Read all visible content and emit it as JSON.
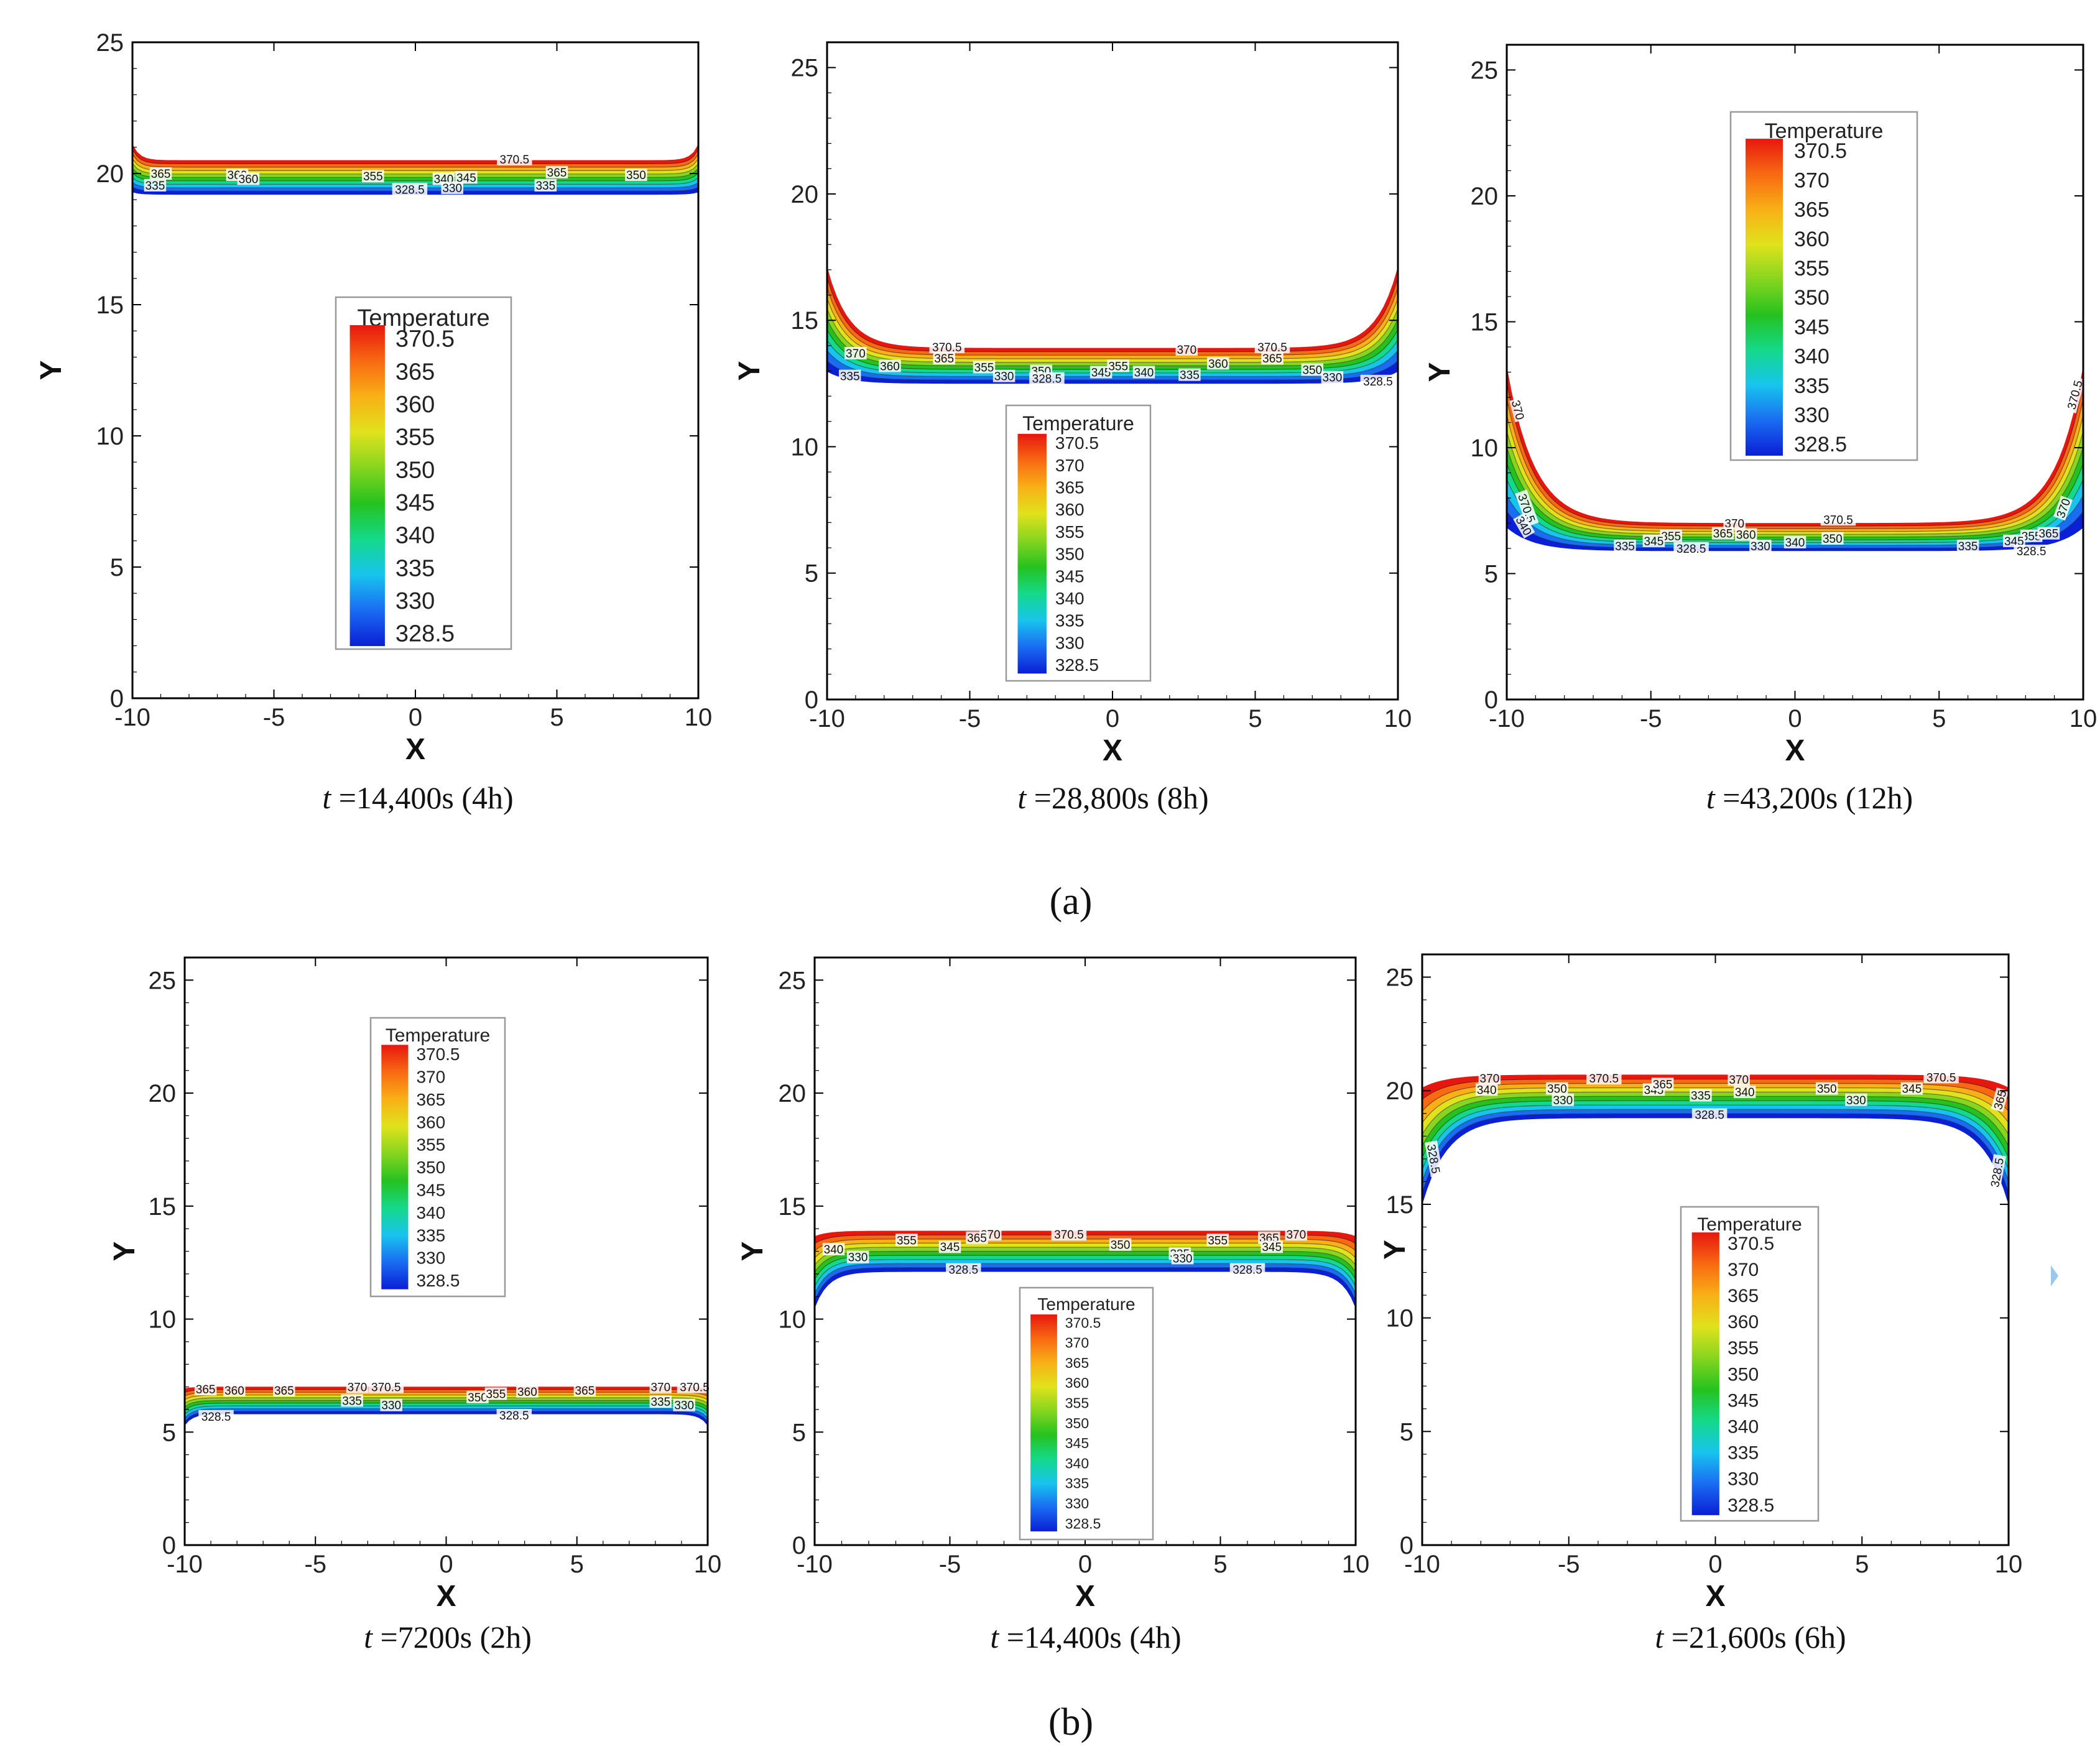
{
  "figure": {
    "label_a": "(a)",
    "label_b": "(b)"
  },
  "colors": {
    "band_colors": [
      "#0a1fd6",
      "#1a6cf2",
      "#18c4ee",
      "#14d98a",
      "#25c21f",
      "#86d51f",
      "#e0e21c",
      "#f8b016",
      "#f86912",
      "#e6170f"
    ],
    "frame": "#000000",
    "contour_line": "#222222"
  },
  "chart_data": [
    {
      "type": "contour",
      "panel": "a",
      "title": "t =14,400s (4h)",
      "caption_t": "t",
      "caption_rest": " =14,400s (4h)",
      "xlabel": "X",
      "ylabel": "Y",
      "xlim": [
        -10,
        10
      ],
      "ylim": [
        0,
        25
      ],
      "xticks": [
        "-10",
        "-5",
        "0",
        "5",
        "10"
      ],
      "yticks": [
        "0",
        "5",
        "10",
        "15",
        "20",
        "25"
      ],
      "legend": {
        "title": "Temperature",
        "levels": [
          "370.5",
          "365",
          "360",
          "355",
          "350",
          "345",
          "340",
          "335",
          "330",
          "328.5"
        ],
        "position": "center"
      },
      "front": {
        "y_hot": 20.5,
        "y_cold": 19.2,
        "edge_rise": 0.6,
        "edge_width": 0.25,
        "edge_side": "up"
      },
      "contour_labels": [
        {
          "text": "370.5",
          "x": 3.5,
          "y": 20.55
        },
        {
          "text": "365",
          "x": -9.0,
          "y": 20.0
        },
        {
          "text": "360",
          "x": -6.3,
          "y": 19.95
        },
        {
          "text": "360",
          "x": -5.9,
          "y": 19.8
        },
        {
          "text": "355",
          "x": -1.5,
          "y": 19.9
        },
        {
          "text": "345",
          "x": 1.8,
          "y": 19.85
        },
        {
          "text": "340",
          "x": 1.0,
          "y": 19.8
        },
        {
          "text": "365",
          "x": 5.0,
          "y": 20.05
        },
        {
          "text": "350",
          "x": 7.8,
          "y": 19.95
        },
        {
          "text": "335",
          "x": -9.2,
          "y": 19.55
        },
        {
          "text": "328.5",
          "x": -0.2,
          "y": 19.4
        },
        {
          "text": "330",
          "x": 1.3,
          "y": 19.45
        },
        {
          "text": "335",
          "x": 4.6,
          "y": 19.55
        }
      ]
    },
    {
      "type": "contour",
      "panel": "a",
      "title": "t =28,800s (8h)",
      "caption_t": "t",
      "caption_rest": " =28,800s (8h)",
      "xlabel": "X",
      "ylabel": "Y",
      "xlim": [
        -10,
        10
      ],
      "ylim": [
        0,
        26
      ],
      "xticks": [
        "-10",
        "-5",
        "0",
        "5",
        "10"
      ],
      "yticks": [
        "0",
        "5",
        "10",
        "15",
        "20",
        "25"
      ],
      "legend": {
        "title": "Temperature",
        "levels": [
          "370.5",
          "370",
          "365",
          "360",
          "355",
          "350",
          "345",
          "340",
          "335",
          "330",
          "328.5"
        ],
        "position": "center"
      },
      "front": {
        "y_hot": 13.9,
        "y_cold": 12.5,
        "edge_rise": 3.2,
        "edge_width": 0.75,
        "edge_side": "up"
      },
      "contour_labels": [
        {
          "text": "370.5",
          "x": -5.8,
          "y": 13.95
        },
        {
          "text": "370",
          "x": -9.0,
          "y": 13.7
        },
        {
          "text": "365",
          "x": -5.9,
          "y": 13.5
        },
        {
          "text": "360",
          "x": -7.8,
          "y": 13.2
        },
        {
          "text": "355",
          "x": -4.5,
          "y": 13.15
        },
        {
          "text": "350",
          "x": -2.5,
          "y": 13.0
        },
        {
          "text": "345",
          "x": -0.4,
          "y": 12.95
        },
        {
          "text": "355",
          "x": 0.2,
          "y": 13.2
        },
        {
          "text": "340",
          "x": 1.1,
          "y": 12.95
        },
        {
          "text": "370",
          "x": 2.6,
          "y": 13.85
        },
        {
          "text": "360",
          "x": 3.7,
          "y": 13.3
        },
        {
          "text": "370.5",
          "x": 5.6,
          "y": 13.95
        },
        {
          "text": "365",
          "x": 5.6,
          "y": 13.5
        },
        {
          "text": "350",
          "x": 7.0,
          "y": 13.05
        },
        {
          "text": "335",
          "x": -9.2,
          "y": 12.8
        },
        {
          "text": "330",
          "x": -3.8,
          "y": 12.8
        },
        {
          "text": "328.5",
          "x": -2.3,
          "y": 12.7
        },
        {
          "text": "335",
          "x": 2.7,
          "y": 12.85
        },
        {
          "text": "330",
          "x": 7.7,
          "y": 12.75
        },
        {
          "text": "328.5",
          "x": 9.3,
          "y": 12.6
        }
      ]
    },
    {
      "type": "contour",
      "panel": "a",
      "title": "t =43,200s (12h)",
      "caption_t": "t",
      "caption_rest": " =43,200s (12h)",
      "xlabel": "X",
      "ylabel": "Y",
      "xlim": [
        -10,
        10
      ],
      "ylim": [
        0,
        26
      ],
      "xticks": [
        "-10",
        "-5",
        "0",
        "5",
        "10"
      ],
      "yticks": [
        "0",
        "5",
        "10",
        "15",
        "20",
        "25"
      ],
      "legend": {
        "title": "Temperature",
        "levels": [
          "370.5",
          "370",
          "365",
          "360",
          "355",
          "350",
          "345",
          "340",
          "335",
          "330",
          "328.5"
        ],
        "position": "top-center"
      },
      "front": {
        "y_hot": 7.0,
        "y_cold": 5.9,
        "edge_rise": 6.2,
        "edge_width": 0.95,
        "edge_side": "up"
      },
      "contour_labels": [
        {
          "text": "370",
          "x": -9.6,
          "y": 11.5,
          "rotate": 75
        },
        {
          "text": "370.5",
          "x": -9.3,
          "y": 7.6,
          "rotate": 70
        },
        {
          "text": "370",
          "x": -2.1,
          "y": 7.0
        },
        {
          "text": "370.5",
          "x": 1.5,
          "y": 7.15
        },
        {
          "text": "370.5",
          "x": 9.7,
          "y": 12.1,
          "rotate": -75
        },
        {
          "text": "370",
          "x": 9.3,
          "y": 7.6,
          "rotate": -70
        },
        {
          "text": "355",
          "x": -4.3,
          "y": 6.5
        },
        {
          "text": "365",
          "x": -2.5,
          "y": 6.6
        },
        {
          "text": "360",
          "x": -1.7,
          "y": 6.55
        },
        {
          "text": "350",
          "x": 1.3,
          "y": 6.4
        },
        {
          "text": "355",
          "x": 8.2,
          "y": 6.5
        },
        {
          "text": "365",
          "x": 8.8,
          "y": 6.6
        },
        {
          "text": "345",
          "x": -4.9,
          "y": 6.3
        },
        {
          "text": "345",
          "x": 7.6,
          "y": 6.3
        },
        {
          "text": "335",
          "x": -5.9,
          "y": 6.1
        },
        {
          "text": "328.5",
          "x": -3.6,
          "y": 6.0
        },
        {
          "text": "330",
          "x": -1.2,
          "y": 6.1
        },
        {
          "text": "340",
          "x": 0.0,
          "y": 6.25
        },
        {
          "text": "335",
          "x": 6.0,
          "y": 6.1
        },
        {
          "text": "328.5",
          "x": 8.2,
          "y": 5.9
        },
        {
          "text": "340",
          "x": -9.4,
          "y": 6.9,
          "rotate": 60
        }
      ]
    },
    {
      "type": "contour",
      "panel": "b",
      "title": "t =7200s (2h)",
      "caption_t": "t",
      "caption_rest": " =7200s (2h)",
      "xlabel": "X",
      "ylabel": "Y",
      "xlim": [
        -10,
        10
      ],
      "ylim": [
        0,
        26
      ],
      "xticks": [
        "-10",
        "-5",
        "0",
        "5",
        "10"
      ],
      "yticks": [
        "0",
        "5",
        "10",
        "15",
        "20",
        "25"
      ],
      "legend": {
        "title": "Temperature",
        "levels": [
          "370.5",
          "370",
          "365",
          "360",
          "355",
          "350",
          "345",
          "340",
          "335",
          "330",
          "328.5"
        ],
        "position": "top-center"
      },
      "front": {
        "y_hot": 7.0,
        "y_cold": 5.8,
        "edge_rise": -0.5,
        "edge_width": 0.3,
        "edge_side": "down"
      },
      "contour_labels": [
        {
          "text": "365",
          "x": -9.2,
          "y": 6.9
        },
        {
          "text": "360",
          "x": -8.1,
          "y": 6.85
        },
        {
          "text": "365",
          "x": -6.2,
          "y": 6.85
        },
        {
          "text": "370",
          "x": -3.4,
          "y": 7.0
        },
        {
          "text": "370.5",
          "x": -2.3,
          "y": 7.0
        },
        {
          "text": "350",
          "x": 1.2,
          "y": 6.55
        },
        {
          "text": "355",
          "x": 1.9,
          "y": 6.7
        },
        {
          "text": "360",
          "x": 3.1,
          "y": 6.8
        },
        {
          "text": "365",
          "x": 5.3,
          "y": 6.85
        },
        {
          "text": "370",
          "x": 8.2,
          "y": 7.0
        },
        {
          "text": "370.5",
          "x": 9.5,
          "y": 7.0
        },
        {
          "text": "335",
          "x": -3.6,
          "y": 6.4
        },
        {
          "text": "330",
          "x": -2.1,
          "y": 6.2
        },
        {
          "text": "335",
          "x": 8.2,
          "y": 6.35
        },
        {
          "text": "330",
          "x": 9.1,
          "y": 6.2
        },
        {
          "text": "328.5",
          "x": -8.8,
          "y": 5.7
        },
        {
          "text": "328.5",
          "x": 2.6,
          "y": 5.75
        }
      ]
    },
    {
      "type": "contour",
      "panel": "b",
      "title": "t =14,400s (4h)",
      "caption_t": "t",
      "caption_rest": " =14,400s (4h)",
      "xlabel": "X",
      "ylabel": "Y",
      "xlim": [
        -10,
        10
      ],
      "ylim": [
        0,
        26
      ],
      "xticks": [
        "-10",
        "-5",
        "0",
        "5",
        "10"
      ],
      "yticks": [
        "0",
        "5",
        "10",
        "15",
        "20",
        "25"
      ],
      "legend": {
        "title": "Temperature",
        "levels": [
          "370.5",
          "370",
          "365",
          "360",
          "355",
          "350",
          "345",
          "340",
          "335",
          "330",
          "328.5"
        ],
        "position": "bottom-center"
      },
      "front": {
        "y_hot": 13.9,
        "y_cold": 12.1,
        "edge_rise": -1.6,
        "edge_width": 0.5,
        "edge_side": "down"
      },
      "contour_labels": [
        {
          "text": "370",
          "x": -3.5,
          "y": 13.75
        },
        {
          "text": "365",
          "x": -4.0,
          "y": 13.6
        },
        {
          "text": "355",
          "x": -6.6,
          "y": 13.5
        },
        {
          "text": "370.5",
          "x": -0.6,
          "y": 13.75
        },
        {
          "text": "350",
          "x": 1.3,
          "y": 13.3
        },
        {
          "text": "355",
          "x": 4.9,
          "y": 13.5
        },
        {
          "text": "365",
          "x": 6.8,
          "y": 13.6
        },
        {
          "text": "370",
          "x": 7.8,
          "y": 13.75
        },
        {
          "text": "345",
          "x": -5.0,
          "y": 13.2
        },
        {
          "text": "340",
          "x": -9.3,
          "y": 13.1
        },
        {
          "text": "345",
          "x": 6.9,
          "y": 13.2
        },
        {
          "text": "335",
          "x": 3.5,
          "y": 12.9
        },
        {
          "text": "330",
          "x": -8.4,
          "y": 12.75
        },
        {
          "text": "330",
          "x": 3.6,
          "y": 12.7
        },
        {
          "text": "328.5",
          "x": -4.5,
          "y": 12.2
        },
        {
          "text": "328.5",
          "x": 6.0,
          "y": 12.2
        }
      ]
    },
    {
      "type": "contour",
      "panel": "b",
      "title": "t =21,600s (6h)",
      "caption_t": "t",
      "caption_rest": " =21,600s (6h)",
      "xlabel": "X",
      "ylabel": "Y",
      "xlim": [
        -10,
        10
      ],
      "ylim": [
        0,
        26
      ],
      "xticks": [
        "-10",
        "-5",
        "0",
        "5",
        "10"
      ],
      "yticks": [
        "0",
        "5",
        "10",
        "15",
        "20",
        "25"
      ],
      "legend": {
        "title": "Temperature",
        "levels": [
          "370.5",
          "370",
          "365",
          "360",
          "355",
          "350",
          "345",
          "340",
          "335",
          "330",
          "328.5"
        ],
        "position": "bottom-center"
      },
      "front": {
        "y_hot": 20.7,
        "y_cold": 18.8,
        "edge_rise": -3.8,
        "edge_width": 0.85,
        "edge_side": "down"
      },
      "contour_labels": [
        {
          "text": "370",
          "x": -7.7,
          "y": 20.55
        },
        {
          "text": "370.5",
          "x": -3.8,
          "y": 20.55
        },
        {
          "text": "370",
          "x": 0.8,
          "y": 20.5
        },
        {
          "text": "370.5",
          "x": 7.7,
          "y": 20.6
        },
        {
          "text": "340",
          "x": -7.8,
          "y": 20.05
        },
        {
          "text": "350",
          "x": -5.4,
          "y": 20.1
        },
        {
          "text": "345",
          "x": -2.1,
          "y": 20.05
        },
        {
          "text": "365",
          "x": -1.8,
          "y": 20.3
        },
        {
          "text": "335",
          "x": -0.5,
          "y": 19.8
        },
        {
          "text": "350",
          "x": 3.8,
          "y": 20.1
        },
        {
          "text": "345",
          "x": 6.7,
          "y": 20.1
        },
        {
          "text": "340",
          "x": 1.0,
          "y": 19.95
        },
        {
          "text": "330",
          "x": -5.2,
          "y": 19.6
        },
        {
          "text": "330",
          "x": 4.8,
          "y": 19.6
        },
        {
          "text": "328.5",
          "x": -0.2,
          "y": 18.95
        },
        {
          "text": "328.5",
          "x": -9.6,
          "y": 17.0,
          "rotate": 80
        },
        {
          "text": "328.5",
          "x": 9.6,
          "y": 16.4,
          "rotate": -80
        },
        {
          "text": "365",
          "x": 9.7,
          "y": 19.6,
          "rotate": -75
        }
      ]
    }
  ]
}
